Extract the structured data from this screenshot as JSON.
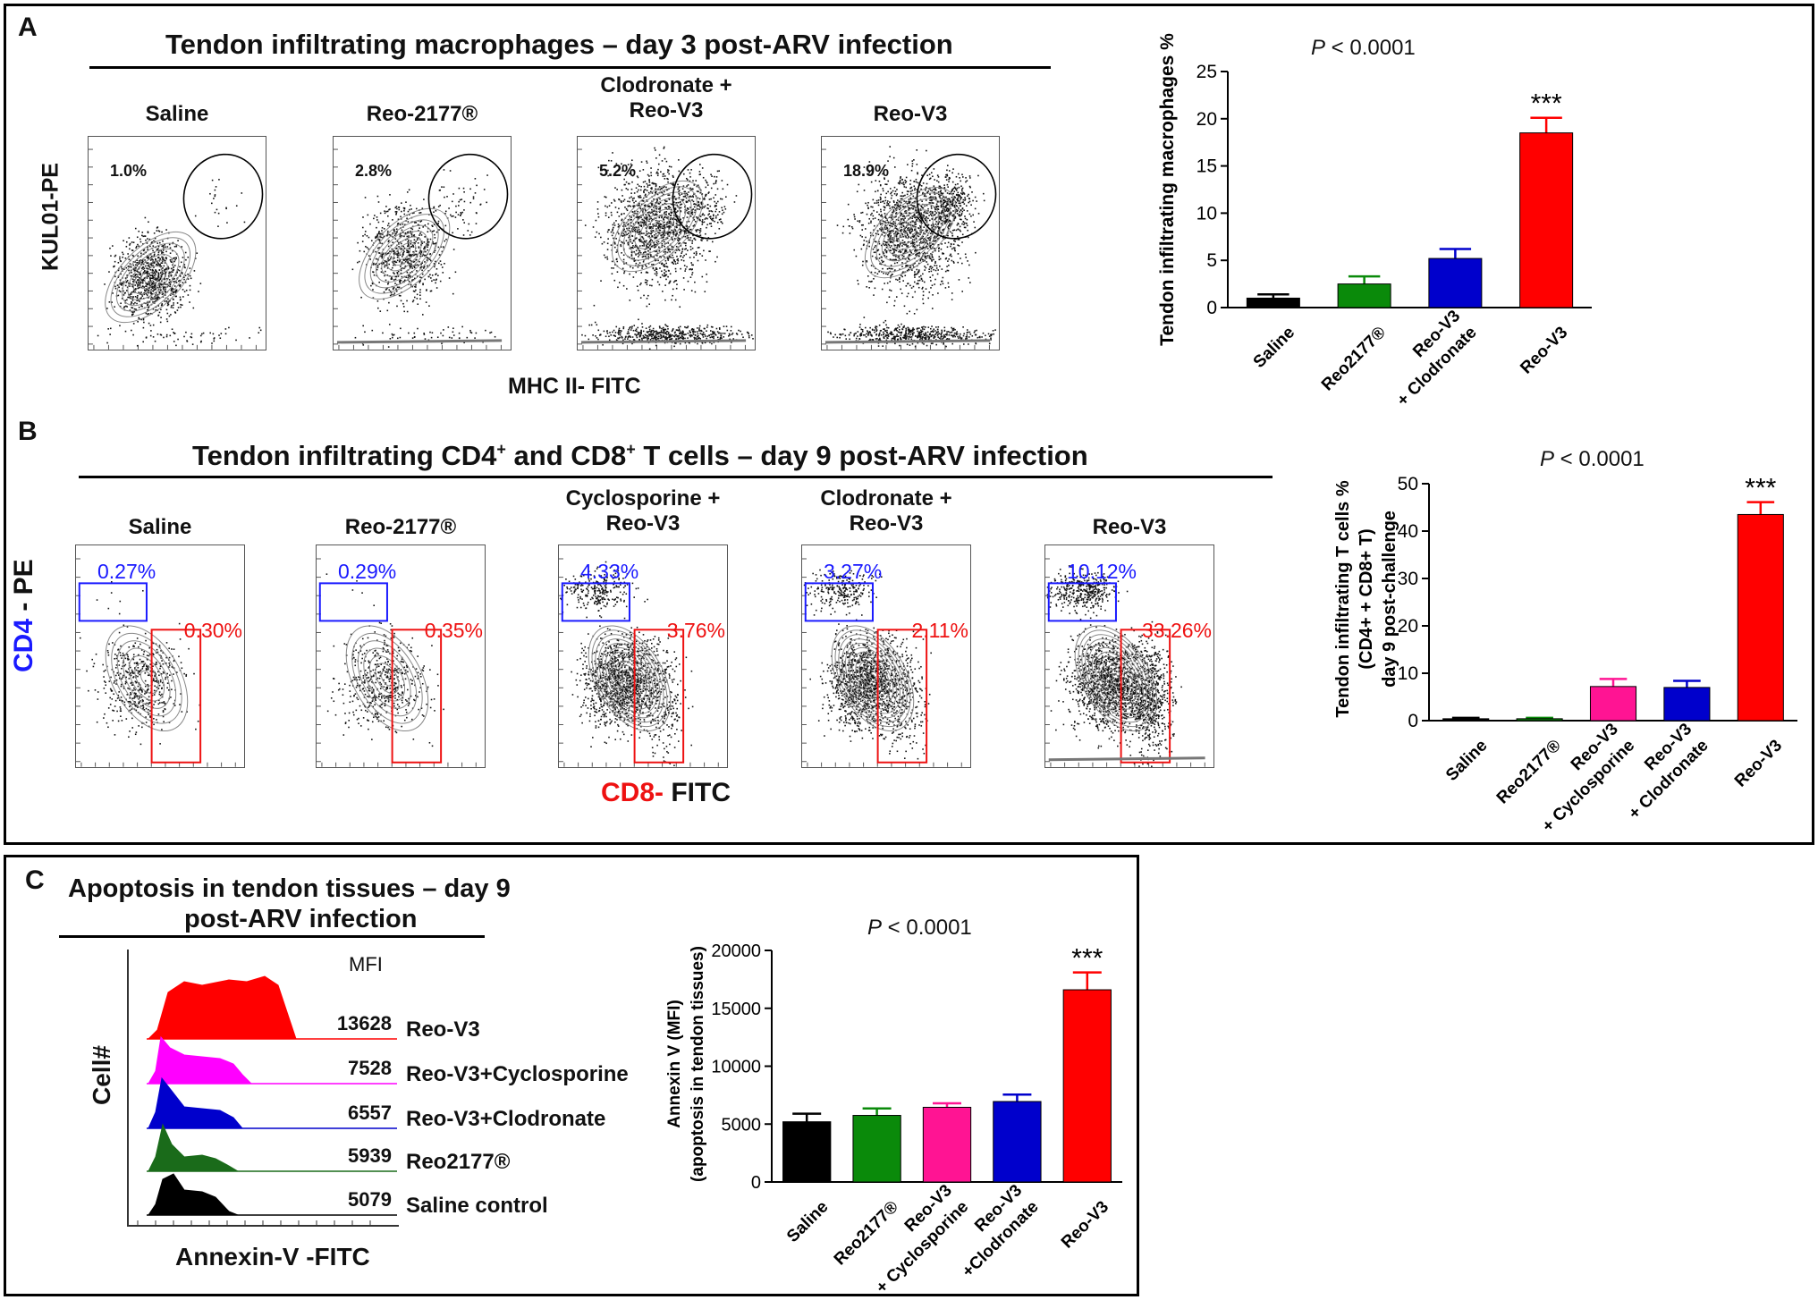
{
  "panel_a": {
    "label": "A",
    "title": "Tendon infiltrating macrophages – day 3 post-ARV infection",
    "flow_plots": [
      {
        "group": "Saline",
        "percent": "1.0%"
      },
      {
        "group": "Reo-2177®",
        "percent": "2.8%"
      },
      {
        "group": "Clodronate +\nReo-V3",
        "percent": "5.2%"
      },
      {
        "group": "Reo-V3",
        "percent": "18.9%"
      }
    ],
    "y_axis_label": "KUL01-PE",
    "x_axis_label": "MHC II- FITC",
    "pvalue_prefix": "P",
    "pvalue_rest": " < 0.0001"
  },
  "panel_b": {
    "label": "B",
    "title_parts": {
      "a": "Tendon infiltrating CD4",
      "sup1": "+",
      "b": " and CD8",
      "sup2": "+",
      "c": " T cells – day 9 post-ARV infection"
    },
    "flow_plots": [
      {
        "group": "Saline",
        "cd4": "0.27%",
        "cd8": "0.30%"
      },
      {
        "group": "Reo-2177®",
        "cd4": "0.29%",
        "cd8": "0.35%"
      },
      {
        "group": "Cyclosporine +\nReo-V3",
        "cd4": "4.33%",
        "cd8": "3.76%"
      },
      {
        "group": "Clodronate +\nReo-V3",
        "cd4": "3.27%",
        "cd8": "2.11%"
      },
      {
        "group": "Reo-V3",
        "cd4": "10.12%",
        "cd8": "33.26%"
      }
    ],
    "y_axis_label_cd4": "CD4",
    "y_axis_label_rest": " - PE",
    "x_axis_label_cd8": "CD8-",
    "x_axis_label_rest": " FITC",
    "pvalue_prefix": "P",
    "pvalue_rest": " < 0.0001"
  },
  "panel_c": {
    "label": "C",
    "title_line1": "Apoptosis in tendon tissues –  day 9",
    "title_line2": "post-ARV infection",
    "mfi_header": "MFI",
    "histograms": [
      {
        "mfi": "13628",
        "label": "Reo-V3",
        "color": "#ff0000"
      },
      {
        "mfi": "7528",
        "label": "Reo-V3+Cyclosporine",
        "color": "#ff00ff"
      },
      {
        "mfi": "6557",
        "label": "Reo-V3+Clodronate",
        "color": "#0000cc"
      },
      {
        "mfi": "5939",
        "label": "Reo2177®",
        "color": "#1a6b1a"
      },
      {
        "mfi": "5079",
        "label": "Saline control",
        "color": "#000000"
      }
    ],
    "y_axis_label": "Cell#",
    "x_axis_label": "Annexin-V -FITC",
    "pvalue_prefix": "P",
    "pvalue_rest": " < 0.0001"
  },
  "chart_data": [
    {
      "type": "bar",
      "panel": "A",
      "title": "P < 0.0001",
      "ylabel": "Tendon infiltrating macrophages %",
      "categories": [
        "Saline",
        "Reo2177®",
        "Reo-V3\n+ Clodronate",
        "Reo-V3"
      ],
      "values": [
        1.0,
        2.5,
        5.2,
        18.5
      ],
      "errors": [
        0.4,
        0.8,
        1.0,
        1.6
      ],
      "colors": [
        "#000000",
        "#0a8a0a",
        "#0000cc",
        "#ff0000"
      ],
      "ylim": [
        0,
        25
      ],
      "yticks": [
        0,
        5,
        10,
        15,
        20,
        25
      ],
      "annotations": [
        {
          "index": 3,
          "text": "***"
        }
      ]
    },
    {
      "type": "bar",
      "panel": "B",
      "title": "P < 0.0001",
      "ylabel_lines": [
        "Tendon infiltrating T cells %",
        "(CD4+ + CD8+ T)",
        "day 9 post-challenge"
      ],
      "categories": [
        "Saline",
        "Reo2177®",
        "Reo-V3\n+ Cyclosporine",
        "Reo-V3\n+ Clodronate",
        "Reo-V3"
      ],
      "values": [
        0.4,
        0.4,
        7.2,
        7.0,
        43.5
      ],
      "errors": [
        0.2,
        0.2,
        1.6,
        1.4,
        2.6
      ],
      "colors": [
        "#000000",
        "#0a8a0a",
        "#ff1493",
        "#0000cc",
        "#ff0000"
      ],
      "ylim": [
        0,
        50
      ],
      "yticks": [
        0,
        10,
        20,
        30,
        40,
        50
      ],
      "annotations": [
        {
          "index": 4,
          "text": "***"
        }
      ]
    },
    {
      "type": "bar",
      "panel": "C",
      "title": "P < 0.0001",
      "ylabel_lines": [
        "Annexin V (MFI)",
        "(apoptosis in tendon tissues)"
      ],
      "categories": [
        "Saline",
        "Reo2177®",
        "Reo-V3\n+ Cyclosporine",
        "Reo-V3\n+Clodronate",
        "Reo-V3"
      ],
      "values": [
        5200,
        5750,
        6450,
        6950,
        16600
      ],
      "errors": [
        700,
        600,
        350,
        600,
        1500
      ],
      "colors": [
        "#000000",
        "#0a8a0a",
        "#ff1493",
        "#0000cc",
        "#ff0000"
      ],
      "ylim": [
        0,
        20000
      ],
      "yticks": [
        0,
        5000,
        10000,
        15000,
        20000
      ],
      "annotations": [
        {
          "index": 4,
          "text": "***"
        }
      ]
    }
  ]
}
